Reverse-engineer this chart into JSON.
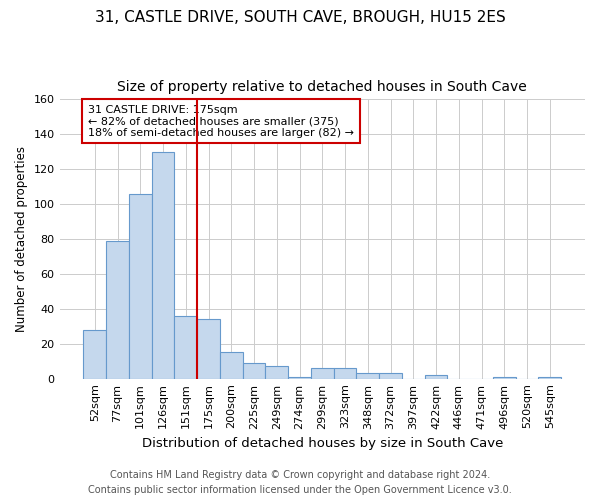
{
  "title1": "31, CASTLE DRIVE, SOUTH CAVE, BROUGH, HU15 2ES",
  "title2": "Size of property relative to detached houses in South Cave",
  "xlabel": "Distribution of detached houses by size in South Cave",
  "ylabel": "Number of detached properties",
  "footnote1": "Contains HM Land Registry data © Crown copyright and database right 2024.",
  "footnote2": "Contains public sector information licensed under the Open Government Licence v3.0.",
  "bar_labels": [
    "52sqm",
    "77sqm",
    "101sqm",
    "126sqm",
    "151sqm",
    "175sqm",
    "200sqm",
    "225sqm",
    "249sqm",
    "274sqm",
    "299sqm",
    "323sqm",
    "348sqm",
    "372sqm",
    "397sqm",
    "422sqm",
    "446sqm",
    "471sqm",
    "496sqm",
    "520sqm",
    "545sqm"
  ],
  "bar_values": [
    28,
    79,
    106,
    130,
    36,
    34,
    15,
    9,
    7,
    1,
    6,
    6,
    3,
    3,
    0,
    2,
    0,
    0,
    1,
    0,
    1
  ],
  "bar_color": "#c5d8ed",
  "bar_edge_color": "#6699cc",
  "vline_x": 4.5,
  "vline_color": "#cc0000",
  "annotation_line1": "31 CASTLE DRIVE: 175sqm",
  "annotation_line2": "← 82% of detached houses are smaller (375)",
  "annotation_line3": "18% of semi-detached houses are larger (82) →",
  "annotation_box_color": "#ffffff",
  "annotation_box_edge": "#cc0000",
  "ylim": [
    0,
    160
  ],
  "yticks": [
    0,
    20,
    40,
    60,
    80,
    100,
    120,
    140,
    160
  ],
  "grid_color": "#cccccc",
  "background_color": "#ffffff",
  "title1_fontsize": 11,
  "title2_fontsize": 10,
  "axis_label_fontsize": 9.5,
  "ylabel_fontsize": 8.5,
  "tick_fontsize": 8,
  "annotation_fontsize": 8,
  "footnote_fontsize": 7
}
